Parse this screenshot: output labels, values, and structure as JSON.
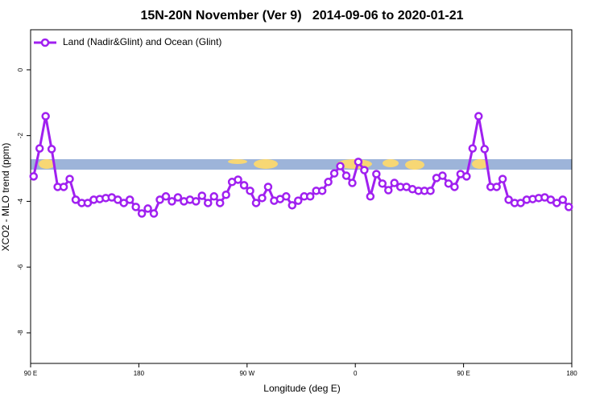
{
  "chart_data": {
    "type": "line",
    "title": "15N-20N November (Ver 9)   2014-09-06 to 2020-01-21",
    "x_label": "Longitude (deg E)",
    "y_label": "XCO2 - MLO trend (ppm)",
    "legend_position": "top-left",
    "xlim": [
      90,
      540
    ],
    "ylim": [
      -8.93,
      1.22
    ],
    "xticks": [
      {
        "value": 90,
        "label": "90 E"
      },
      180,
      {
        "value": 270,
        "label": "90 W"
      },
      {
        "value": 360,
        "label": "0"
      },
      {
        "value": 450,
        "label": "90 E"
      },
      {
        "value": 540,
        "label": "180"
      }
    ],
    "yticks": [
      0,
      -2,
      -4,
      -6,
      -8
    ],
    "x": [
      92.5,
      97.5,
      102.5,
      107.5,
      112.5,
      117.5,
      122.5,
      127.5,
      132.5,
      137.5,
      142.5,
      147.5,
      152.5,
      157.5,
      162.5,
      167.5,
      172.5,
      177.5,
      182.5,
      187.5,
      192.5,
      197.5,
      202.5,
      207.5,
      212.5,
      217.5,
      222.5,
      227.5,
      232.5,
      237.5,
      242.5,
      247.5,
      252.5,
      257.5,
      262.5,
      267.5,
      272.5,
      277.5,
      282.5,
      287.5,
      292.5,
      297.5,
      302.5,
      307.5,
      312.5,
      317.5,
      322.5,
      327.5,
      332.5,
      337.5,
      342.5,
      347.5,
      352.5,
      357.5,
      362.5,
      367.5,
      372.5,
      377.5,
      382.5,
      387.5,
      392.5,
      397.5,
      402.5,
      407.5,
      412.5,
      417.5,
      422.5,
      427.5,
      432.5,
      437.5,
      442.5,
      447.5,
      452.5,
      457.5,
      462.5,
      467.5,
      472.5,
      477.5,
      482.5,
      487.5,
      492.5,
      497.5,
      502.5,
      507.5,
      512.5,
      517.5,
      522.5,
      527.5,
      532.5,
      537.5
    ],
    "series": [
      {
        "name": "Land (Nadir&Glint) and Ocean (Glint)",
        "color": "#a020f0",
        "values": [
          -3.24,
          -2.39,
          -1.41,
          -2.41,
          -3.56,
          -3.56,
          -3.32,
          -3.95,
          -4.05,
          -4.05,
          -3.95,
          -3.93,
          -3.9,
          -3.88,
          -3.95,
          -4.05,
          -3.95,
          -4.17,
          -4.37,
          -4.22,
          -4.37,
          -3.95,
          -3.85,
          -4.0,
          -3.88,
          -4.0,
          -3.95,
          -4.0,
          -3.83,
          -4.05,
          -3.85,
          -4.05,
          -3.8,
          -3.41,
          -3.34,
          -3.51,
          -3.68,
          -4.05,
          -3.9,
          -3.56,
          -3.98,
          -3.93,
          -3.85,
          -4.12,
          -3.98,
          -3.85,
          -3.85,
          -3.68,
          -3.68,
          -3.41,
          -3.15,
          -2.93,
          -3.22,
          -3.44,
          -2.8,
          -3.05,
          -3.85,
          -3.17,
          -3.46,
          -3.66,
          -3.44,
          -3.56,
          -3.56,
          -3.63,
          -3.68,
          -3.68,
          -3.68,
          -3.29,
          -3.22,
          -3.46,
          -3.56,
          -3.17,
          -3.24,
          -2.39,
          -1.41,
          -2.41,
          -3.56,
          -3.56,
          -3.32,
          -3.95,
          -4.05,
          -4.05,
          -3.95,
          -3.93,
          -3.9,
          -3.88,
          -3.95,
          -4.05,
          -3.95,
          -4.17
        ]
      }
    ]
  }
}
